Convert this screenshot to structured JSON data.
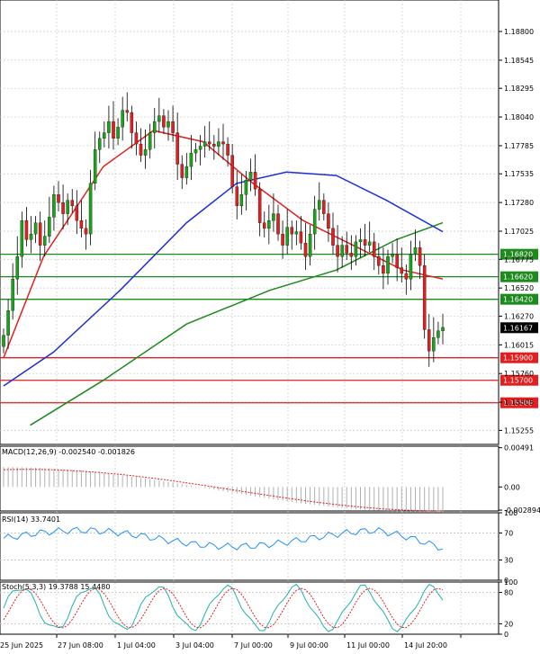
{
  "chart_data": [
    {
      "type": "candlestick",
      "symbol_panel": "main",
      "y_ticks": [
        "1.18800",
        "1.18545",
        "1.18295",
        "1.18040",
        "1.17785",
        "1.17535",
        "1.17280",
        "1.17025",
        "1.16775",
        "1.16520",
        "1.16270",
        "1.16015",
        "1.15760",
        "1.15505",
        "1.15255"
      ],
      "ylim": [
        1.1513,
        1.1908
      ],
      "x_ticks": [
        "25 Jun 2025",
        "27 Jun 08:00",
        "1 Jul 04:00",
        "3 Jul 04:00",
        "7 Jul 00:00",
        "9 Jul 00:00",
        "11 Jul 00:00",
        "14 Jul 20:00"
      ],
      "last_price": "1.16167",
      "last_price_value": 1.16167,
      "levels": [
        {
          "label": "1.16820",
          "value": 1.1682,
          "color": "#1e8a1e"
        },
        {
          "label": "1.16620",
          "value": 1.1662,
          "color": "#1e8a1e"
        },
        {
          "label": "1.16420",
          "value": 1.1642,
          "color": "#1e8a1e"
        },
        {
          "label": "1.15900",
          "value": 1.159,
          "color": "#e02020"
        },
        {
          "label": "1.15700",
          "value": 1.157,
          "color": "#e02020"
        },
        {
          "label": "1.15500",
          "value": 1.155,
          "color": "#e02020"
        }
      ],
      "candles_close": [
        1.161,
        1.1632,
        1.166,
        1.168,
        1.1712,
        1.1695,
        1.17,
        1.171,
        1.169,
        1.1698,
        1.1715,
        1.1735,
        1.1728,
        1.1718,
        1.173,
        1.1725,
        1.1712,
        1.1705,
        1.17,
        1.1745,
        1.1775,
        1.1785,
        1.179,
        1.18,
        1.1785,
        1.1795,
        1.181,
        1.1808,
        1.179,
        1.178,
        1.177,
        1.1775,
        1.179,
        1.18,
        1.1805,
        1.1795,
        1.18,
        1.179,
        1.1762,
        1.175,
        1.176,
        1.1772,
        1.1775,
        1.1778,
        1.1782,
        1.178,
        1.1778,
        1.1782,
        1.178,
        1.177,
        1.1742,
        1.1725,
        1.1735,
        1.1748,
        1.1755,
        1.174,
        1.171,
        1.1705,
        1.1712,
        1.1718,
        1.17,
        1.169,
        1.1706,
        1.17,
        1.1702,
        1.1692,
        1.168,
        1.17,
        1.1722,
        1.173,
        1.1718,
        1.1705,
        1.169,
        1.168,
        1.169,
        1.1683,
        1.168,
        1.1693,
        1.1695,
        1.169,
        1.1693,
        1.168,
        1.1672,
        1.1665,
        1.168,
        1.1682,
        1.167,
        1.1665,
        1.166,
        1.1682,
        1.1688,
        1.1672,
        1.1615,
        1.1596,
        1.1608,
        1.1614,
        1.1617
      ],
      "candles_open_shift": 1,
      "ema_fast_red": [
        [
          0,
          1.159
        ],
        [
          12,
          1.168
        ],
        [
          30,
          1.176
        ],
        [
          45,
          1.1792
        ],
        [
          60,
          1.1782
        ],
        [
          75,
          1.1745
        ],
        [
          90,
          1.1712
        ],
        [
          105,
          1.169
        ],
        [
          120,
          1.1668
        ],
        [
          132,
          1.166
        ]
      ],
      "ema_mid_blue": [
        [
          0,
          1.1565
        ],
        [
          15,
          1.1595
        ],
        [
          35,
          1.165
        ],
        [
          55,
          1.171
        ],
        [
          70,
          1.1745
        ],
        [
          85,
          1.1755
        ],
        [
          100,
          1.1752
        ],
        [
          115,
          1.173
        ],
        [
          132,
          1.1702
        ]
      ],
      "ema_slow_green": [
        [
          8,
          1.153
        ],
        [
          30,
          1.157
        ],
        [
          55,
          1.162
        ],
        [
          80,
          1.165
        ],
        [
          100,
          1.1668
        ],
        [
          118,
          1.1695
        ],
        [
          132,
          1.171
        ]
      ]
    },
    {
      "type": "histogram",
      "panel": "MACD",
      "label": "MACD(12,26,9) -0.002540 -0.001826",
      "y_ticks": [
        "0.00491",
        "0.00",
        "-0.002894"
      ],
      "ylim": [
        -0.003,
        0.0051
      ],
      "signal_color": "#e02020"
    },
    {
      "type": "line",
      "panel": "RSI",
      "label": "RSI(14) 33.7401",
      "y_ticks": [
        "100",
        "70",
        "30",
        "0"
      ],
      "ylim": [
        0,
        100
      ],
      "color": "#1e90ff"
    },
    {
      "type": "line",
      "panel": "Stochastic",
      "label": "Stoch(5,3,3) 19.3788 15.4480",
      "y_ticks": [
        "100",
        "80",
        "20",
        "0"
      ],
      "ylim": [
        0,
        100
      ],
      "main_color": "#20b2aa",
      "signal_color": "#e02020"
    }
  ]
}
